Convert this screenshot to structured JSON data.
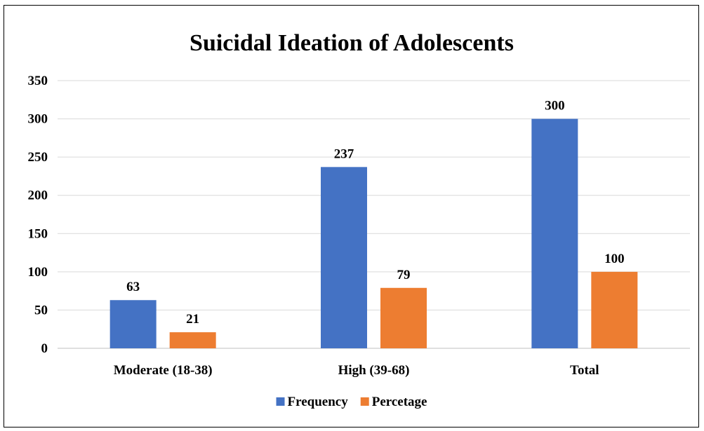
{
  "chart_data": {
    "type": "bar",
    "title": "Suicidal Ideation of Adolescents",
    "categories": [
      "Moderate (18-38)",
      "High (39-68)",
      "Total"
    ],
    "series": [
      {
        "name": "Frequency",
        "values": [
          63,
          237,
          300
        ],
        "color": "#4472C4"
      },
      {
        "name": "Percetage",
        "values": [
          21,
          79,
          100
        ],
        "color": "#ED7D31"
      }
    ],
    "ylim": [
      0,
      350
    ],
    "yticks": [
      0,
      50,
      100,
      150,
      200,
      250,
      300,
      350
    ],
    "grid": true,
    "legend_position": "bottom",
    "data_labels": true
  }
}
